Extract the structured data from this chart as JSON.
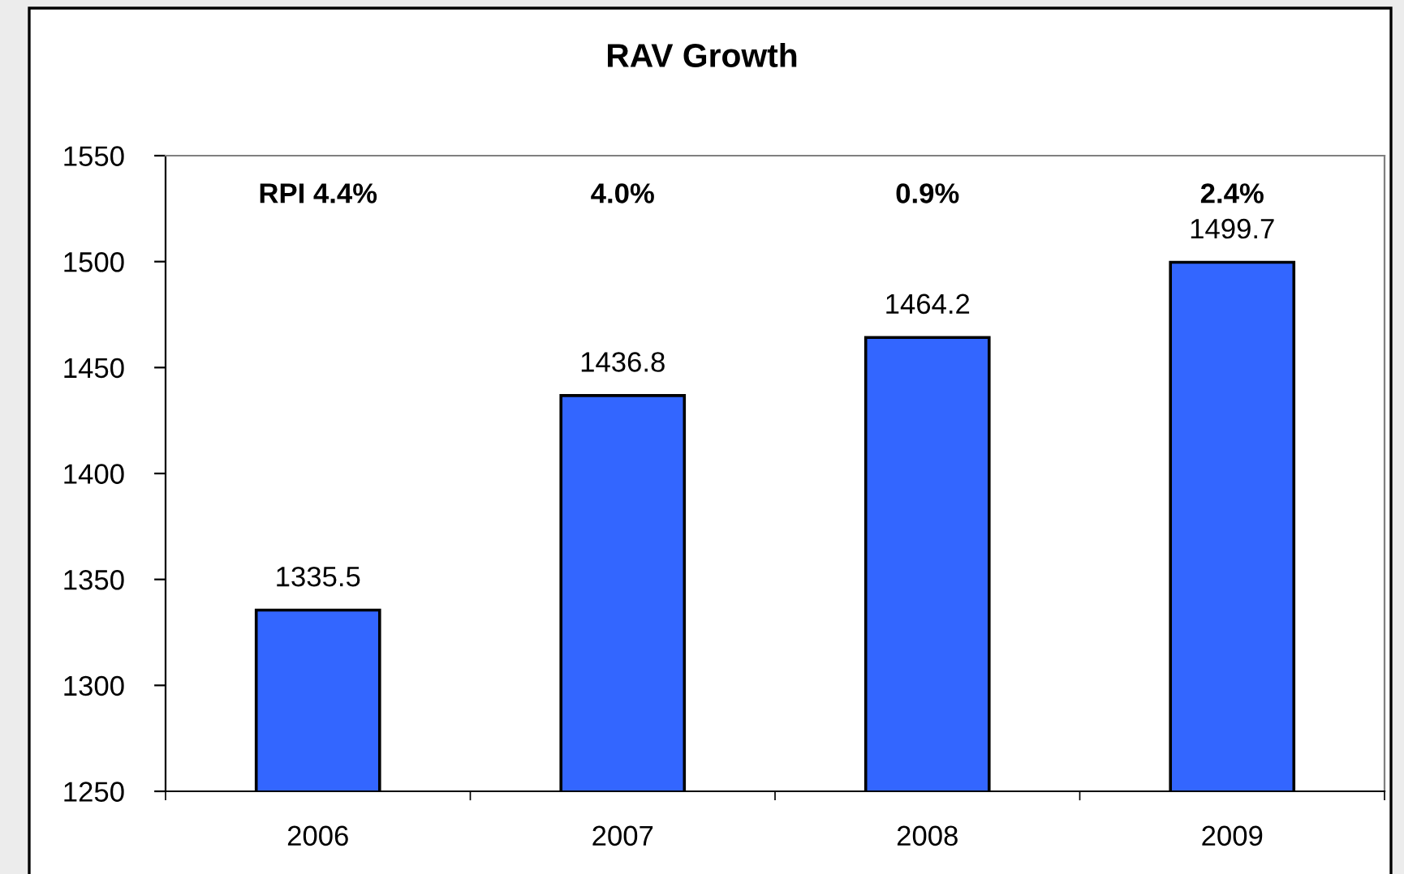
{
  "chart_data": {
    "type": "bar",
    "title": "RAV Growth",
    "categories": [
      "2006",
      "2007",
      "2008",
      "2009"
    ],
    "values": [
      1335.5,
      1436.8,
      1464.2,
      1499.7
    ],
    "color": "#3366ff",
    "ylim": [
      1250,
      1550
    ],
    "yticks": [
      1250,
      1300,
      1350,
      1400,
      1450,
      1500,
      1550
    ],
    "data_labels": true,
    "annotations": [
      "RPI 4.4%",
      "4.0%",
      "0.9%",
      "2.4%"
    ]
  }
}
